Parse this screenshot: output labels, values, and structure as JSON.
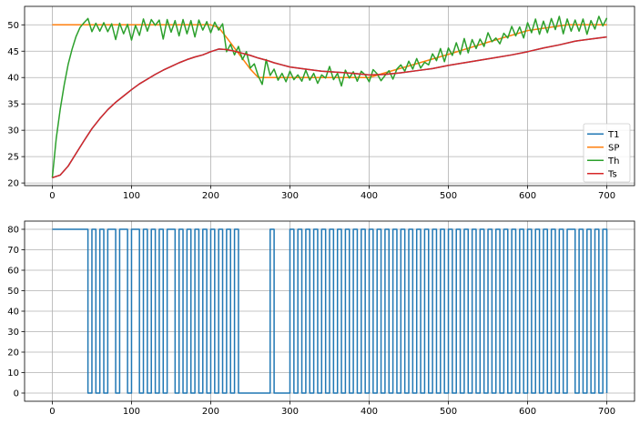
{
  "chart_data": [
    {
      "type": "line",
      "title": "",
      "xlabel": "",
      "ylabel": "",
      "xlim": [
        -35,
        735
      ],
      "ylim": [
        19.5,
        53.5
      ],
      "xticks": [
        0,
        100,
        200,
        300,
        400,
        500,
        600,
        700
      ],
      "yticks": [
        20,
        25,
        30,
        35,
        40,
        45,
        50
      ],
      "grid": true,
      "legend_position": "lower-right",
      "series": [
        {
          "name": "T1",
          "color": "#1f77b4",
          "x": [
            0,
            10,
            20,
            30,
            40,
            50,
            60,
            70,
            80,
            90,
            100,
            110,
            120,
            130,
            140,
            150,
            160,
            170,
            180,
            190,
            200,
            210,
            220,
            230,
            240,
            250,
            260,
            270,
            280,
            290,
            300,
            320,
            340,
            360,
            380,
            400,
            420,
            440,
            460,
            480,
            500,
            520,
            540,
            560,
            580,
            600,
            620,
            640,
            660,
            680,
            700
          ],
          "y": [
            21.0,
            21.5,
            23.2,
            25.6,
            28.0,
            30.3,
            32.2,
            33.9,
            35.3,
            36.5,
            37.7,
            38.8,
            39.7,
            40.6,
            41.4,
            42.1,
            42.8,
            43.4,
            43.9,
            44.3,
            44.9,
            45.4,
            45.3,
            45.0,
            44.6,
            44.2,
            43.7,
            43.3,
            42.8,
            42.4,
            42.0,
            41.6,
            41.2,
            41.0,
            40.8,
            40.5,
            40.6,
            40.9,
            41.3,
            41.7,
            42.3,
            42.8,
            43.3,
            43.8,
            44.3,
            44.9,
            45.6,
            46.2,
            46.9,
            47.3,
            47.7
          ]
        },
        {
          "name": "SP",
          "color": "#ff7f0e",
          "x": [
            0,
            50,
            100,
            150,
            200,
            210,
            220,
            230,
            240,
            250,
            260,
            300,
            350,
            400,
            420,
            450,
            500,
            550,
            600,
            650,
            700
          ],
          "y": [
            50,
            50,
            50,
            50,
            50,
            49.5,
            47.6,
            45.6,
            43.6,
            41.6,
            40,
            40,
            40,
            40,
            40.9,
            42.2,
            44.4,
            46.7,
            48.9,
            50,
            50
          ]
        },
        {
          "name": "Th",
          "color": "#2ca02c",
          "x": [
            0,
            5,
            10,
            15,
            20,
            25,
            30,
            35,
            40,
            45,
            50,
            55,
            60,
            65,
            70,
            75,
            80,
            85,
            90,
            95,
            100,
            105,
            110,
            115,
            120,
            125,
            130,
            135,
            140,
            145,
            150,
            155,
            160,
            165,
            170,
            175,
            180,
            185,
            190,
            195,
            200,
            205,
            210,
            215,
            220,
            225,
            230,
            235,
            240,
            245,
            250,
            255,
            260,
            265,
            270,
            275,
            280,
            285,
            290,
            295,
            300,
            305,
            310,
            315,
            320,
            325,
            330,
            335,
            340,
            345,
            350,
            355,
            360,
            365,
            370,
            375,
            380,
            385,
            390,
            395,
            400,
            405,
            410,
            415,
            420,
            425,
            430,
            435,
            440,
            445,
            450,
            455,
            460,
            465,
            470,
            475,
            480,
            485,
            490,
            495,
            500,
            505,
            510,
            515,
            520,
            525,
            530,
            535,
            540,
            545,
            550,
            555,
            560,
            565,
            570,
            575,
            580,
            585,
            590,
            595,
            600,
            605,
            610,
            615,
            620,
            625,
            630,
            635,
            640,
            645,
            650,
            655,
            660,
            665,
            670,
            675,
            680,
            685,
            690,
            695,
            700
          ],
          "y": [
            21.0,
            28.5,
            34.0,
            38.6,
            42.5,
            45.4,
            47.8,
            49.5,
            50.4,
            51.2,
            48.7,
            50.3,
            48.8,
            50.4,
            48.7,
            50.2,
            47.2,
            50.3,
            48.3,
            50.1,
            47.1,
            49.9,
            48.0,
            51.1,
            48.8,
            51.0,
            49.9,
            50.9,
            47.3,
            51.0,
            48.6,
            50.8,
            47.9,
            51.0,
            48.3,
            50.8,
            47.7,
            50.9,
            49.0,
            50.6,
            48.5,
            50.5,
            49.0,
            50.2,
            44.9,
            46.3,
            44.3,
            45.9,
            43.4,
            44.9,
            41.8,
            42.6,
            40.3,
            38.7,
            43.4,
            40.4,
            41.6,
            39.5,
            40.8,
            39.2,
            41.2,
            39.6,
            40.5,
            39.3,
            41.4,
            39.5,
            40.8,
            38.9,
            40.5,
            39.9,
            42.1,
            39.6,
            40.8,
            38.4,
            41.4,
            39.9,
            41.1,
            39.3,
            41.2,
            40.5,
            39.2,
            41.5,
            40.7,
            39.4,
            40.4,
            41.3,
            39.7,
            41.6,
            42.4,
            41.2,
            43.1,
            41.6,
            43.6,
            41.8,
            42.9,
            42.4,
            44.5,
            43.2,
            45.5,
            43.0,
            45.6,
            44.2,
            46.6,
            44.4,
            47.4,
            44.7,
            47.2,
            45.5,
            47.3,
            45.9,
            48.5,
            46.8,
            47.5,
            46.4,
            48.4,
            47.5,
            49.7,
            47.9,
            49.6,
            47.5,
            50.4,
            48.5,
            51.1,
            48.2,
            50.7,
            48.5,
            51.2,
            49.1,
            51.6,
            48.3,
            51.1,
            48.8,
            50.9,
            48.8,
            51.1,
            48.2,
            50.8,
            49.2,
            51.6,
            49.8,
            51.3
          ]
        },
        {
          "name": "Ts",
          "color": "#d62728",
          "x": [
            0,
            10,
            20,
            30,
            40,
            50,
            60,
            70,
            80,
            90,
            100,
            110,
            120,
            130,
            140,
            150,
            160,
            170,
            180,
            190,
            200,
            210,
            220,
            230,
            240,
            250,
            260,
            270,
            280,
            290,
            300,
            320,
            340,
            360,
            380,
            400,
            420,
            440,
            460,
            480,
            500,
            520,
            540,
            560,
            580,
            600,
            620,
            640,
            660,
            680,
            700
          ],
          "y": [
            21.0,
            21.5,
            23.2,
            25.6,
            28.0,
            30.3,
            32.2,
            33.9,
            35.3,
            36.5,
            37.7,
            38.8,
            39.7,
            40.6,
            41.4,
            42.1,
            42.8,
            43.4,
            43.9,
            44.3,
            44.9,
            45.4,
            45.3,
            45.0,
            44.6,
            44.2,
            43.7,
            43.3,
            42.8,
            42.4,
            42.0,
            41.6,
            41.2,
            41.0,
            40.8,
            40.5,
            40.6,
            40.9,
            41.3,
            41.7,
            42.3,
            42.8,
            43.3,
            43.8,
            44.3,
            44.9,
            45.6,
            46.2,
            46.9,
            47.3,
            47.7
          ]
        }
      ]
    },
    {
      "type": "line",
      "title": "",
      "xlabel": "",
      "ylabel": "",
      "xlim": [
        -35,
        735
      ],
      "ylim": [
        -4,
        84
      ],
      "xticks": [
        0,
        100,
        200,
        300,
        400,
        500,
        600,
        700
      ],
      "yticks": [
        0,
        10,
        20,
        30,
        40,
        50,
        60,
        70,
        80
      ],
      "grid": true,
      "series": [
        {
          "color": "#1f77b4",
          "step": 5,
          "y": [
            80,
            80,
            80,
            80,
            80,
            80,
            80,
            80,
            80,
            0,
            80,
            0,
            80,
            0,
            80,
            80,
            0,
            80,
            80,
            0,
            80,
            80,
            0,
            80,
            0,
            80,
            0,
            80,
            0,
            80,
            80,
            0,
            80,
            0,
            80,
            0,
            80,
            0,
            80,
            0,
            80,
            0,
            80,
            0,
            80,
            0,
            80,
            0,
            0,
            0,
            0,
            0,
            0,
            0,
            0,
            80,
            0,
            0,
            0,
            0,
            80,
            0,
            80,
            0,
            80,
            0,
            80,
            0,
            80,
            0,
            80,
            0,
            80,
            0,
            80,
            0,
            80,
            0,
            80,
            0,
            80,
            0,
            80,
            0,
            80,
            0,
            80,
            0,
            80,
            0,
            80,
            0,
            80,
            0,
            80,
            0,
            80,
            0,
            80,
            0,
            80,
            0,
            80,
            0,
            80,
            0,
            80,
            0,
            80,
            0,
            80,
            0,
            80,
            0,
            80,
            0,
            80,
            0,
            80,
            0,
            80,
            0,
            80,
            0,
            80,
            0,
            80,
            0,
            80,
            0,
            80,
            80,
            0,
            80,
            0,
            80,
            0,
            80,
            0,
            80,
            0
          ]
        }
      ]
    }
  ]
}
